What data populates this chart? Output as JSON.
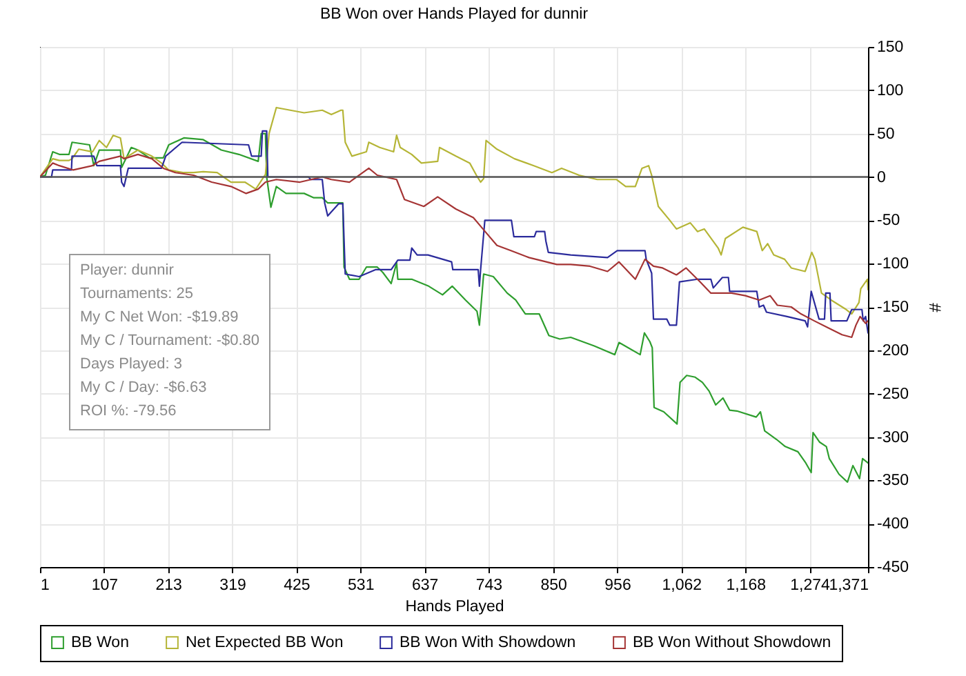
{
  "chart_data": {
    "type": "line",
    "title": "BB Won over Hands Played for dunnir",
    "xlabel": "Hands Played",
    "ylabel": "#",
    "xlim": [
      1,
      1371
    ],
    "ylim": [
      -450,
      150
    ],
    "xticks": [
      1,
      107,
      213,
      319,
      425,
      531,
      637,
      743,
      850,
      956,
      {
        "value": 1062,
        "label": "1,062"
      },
      {
        "value": 1168,
        "label": "1,168"
      },
      {
        "value": 1274,
        "label": "1,274"
      },
      {
        "value": 1371,
        "label": "1,371"
      }
    ],
    "yticks": [
      -450,
      -400,
      -350,
      -300,
      -250,
      -200,
      -150,
      -100,
      -50,
      0,
      50,
      100,
      150
    ],
    "grid": true,
    "legend": "bottom",
    "ref_lines": [
      {
        "axis": "y",
        "value": 0,
        "color": "#555555"
      }
    ],
    "annotations": [
      "Player: dunnir",
      "Tournaments: 25",
      "My C Net Won: -$19.89",
      "My C / Tournament: -$0.80",
      "Days Played: 3",
      "My C / Day: -$6.63",
      "ROI %: -79.56"
    ],
    "series": [
      {
        "name": "BB Won",
        "color": "#2e9e2e",
        "x": [
          1,
          10,
          22,
          33,
          49,
          54,
          83,
          90,
          99,
          134,
          136,
          152,
          163,
          182,
          205,
          214,
          239,
          271,
          301,
          330,
          362,
          367,
          374,
          376,
          383,
          392,
          408,
          438,
          454,
          468,
          477,
          502,
          504,
          513,
          529,
          541,
          559,
          568,
          582,
          591,
          593,
          616,
          644,
          667,
          683,
          705,
          724,
          728,
          735,
          751,
          774,
          788,
          804,
          827,
          843,
          861,
          879,
          918,
          952,
          959,
          994,
          1001,
          1010,
          1014,
          1017,
          1033,
          1055,
          1060,
          1071,
          1085,
          1097,
          1108,
          1119,
          1131,
          1142,
          1154,
          1186,
          1193,
          1200,
          1220,
          1234,
          1255,
          1268,
          1277,
          1280,
          1291,
          1302,
          1307,
          1323,
          1337,
          1346,
          1357,
          1362,
          1371
        ],
        "values": [
          0,
          2,
          29,
          26,
          26,
          40,
          37,
          13,
          31,
          31,
          11,
          34,
          31,
          22,
          22,
          37,
          45,
          43,
          31,
          26,
          18,
          50,
          50,
          0,
          -35,
          -11,
          -19,
          -19,
          -24,
          -24,
          -30,
          -30,
          -104,
          -118,
          -118,
          -104,
          -104,
          -110,
          -123,
          -99,
          -118,
          -118,
          -126,
          -136,
          -126,
          -142,
          -155,
          -171,
          -112,
          -115,
          -134,
          -142,
          -158,
          -158,
          -183,
          -187,
          -185,
          -195,
          -205,
          -191,
          -205,
          -180,
          -190,
          -197,
          -266,
          -271,
          -285,
          -237,
          -229,
          -231,
          -237,
          -247,
          -263,
          -255,
          -269,
          -270,
          -277,
          -271,
          -293,
          -303,
          -311,
          -317,
          -330,
          -341,
          -295,
          -306,
          -311,
          -325,
          -343,
          -352,
          -333,
          -348,
          -325,
          -330
        ]
      },
      {
        "name": "Net Expected BB Won",
        "color": "#b5b536",
        "x": [
          1,
          22,
          33,
          49,
          54,
          65,
          88,
          99,
          111,
          122,
          134,
          140,
          163,
          186,
          202,
          214,
          239,
          255,
          271,
          294,
          317,
          340,
          358,
          374,
          380,
          392,
          415,
          438,
          468,
          483,
          499,
          502,
          506,
          517,
          541,
          545,
          563,
          586,
          591,
          597,
          616,
          632,
          659,
          662,
          689,
          712,
          723,
          730,
          735,
          739,
          757,
          786,
          818,
          848,
          864,
          893,
          923,
          955,
          970,
          986,
          997,
          1008,
          1013,
          1024,
          1043,
          1054,
          1077,
          1089,
          1100,
          1123,
          1128,
          1135,
          1164,
          1187,
          1196,
          1205,
          1215,
          1233,
          1244,
          1267,
          1278,
          1283,
          1294,
          1310,
          1335,
          1344,
          1356,
          1359,
          1370,
          1371
        ],
        "values": [
          0,
          21,
          19,
          19,
          21,
          32,
          29,
          42,
          34,
          48,
          45,
          21,
          31,
          24,
          16,
          8,
          5,
          5,
          6,
          5,
          -6,
          -6,
          -14,
          3,
          50,
          80,
          77,
          74,
          77,
          72,
          77,
          77,
          40,
          24,
          29,
          40,
          34,
          29,
          48,
          34,
          26,
          16,
          18,
          34,
          24,
          16,
          2,
          -6,
          -2,
          42,
          32,
          21,
          13,
          5,
          10,
          2,
          -3,
          -3,
          -11,
          -11,
          10,
          13,
          2,
          -34,
          -50,
          -60,
          -53,
          -63,
          -60,
          -82,
          -90,
          -71,
          -58,
          -63,
          -85,
          -77,
          -90,
          -95,
          -105,
          -109,
          -87,
          -95,
          -134,
          -142,
          -153,
          -158,
          -145,
          -129,
          -118,
          -130
        ]
      },
      {
        "name": "BB Won With Showdown",
        "color": "#2b2b9c",
        "x": [
          1,
          20,
          22,
          53,
          54,
          90,
          95,
          134,
          136,
          140,
          147,
          202,
          209,
          236,
          346,
          351,
          367,
          369,
          376,
          378,
          445,
          449,
          468,
          472,
          477,
          495,
          502,
          506,
          529,
          556,
          582,
          593,
          613,
          616,
          625,
          643,
          682,
          684,
          726,
          728,
          730,
          737,
          781,
          785,
          819,
          822,
          836,
          838,
          842,
          879,
          940,
          956,
          1002,
          1004,
          1013,
          1016,
          1038,
          1043,
          1054,
          1059,
          1089,
          1111,
          1115,
          1130,
          1140,
          1142,
          1187,
          1191,
          1198,
          1203,
          1237,
          1267,
          1271,
          1277,
          1290,
          1299,
          1301,
          1308,
          1310,
          1336,
          1344,
          1361,
          1363,
          1367,
          1371
        ],
        "values": [
          0,
          0,
          8,
          8,
          24,
          24,
          13,
          13,
          -6,
          -11,
          10,
          10,
          24,
          40,
          37,
          24,
          24,
          53,
          53,
          0,
          0,
          -3,
          -3,
          -30,
          -45,
          -31,
          -31,
          -112,
          -115,
          -107,
          -107,
          -96,
          -96,
          -82,
          -90,
          -90,
          -98,
          -107,
          -107,
          -126,
          -107,
          -50,
          -50,
          -69,
          -69,
          -63,
          -63,
          -74,
          -87,
          -90,
          -93,
          -85,
          -85,
          -95,
          -111,
          -164,
          -164,
          -171,
          -171,
          -121,
          -118,
          -118,
          -128,
          -116,
          -116,
          -132,
          -132,
          -150,
          -148,
          -156,
          -161,
          -166,
          -173,
          -132,
          -164,
          -164,
          -134,
          -134,
          -166,
          -166,
          -153,
          -153,
          -166,
          -161,
          -180
        ]
      },
      {
        "name": "BB Won Without Showdown",
        "color": "#a53434",
        "x": [
          1,
          22,
          33,
          56,
          88,
          99,
          134,
          140,
          163,
          186,
          205,
          225,
          255,
          285,
          317,
          342,
          362,
          374,
          392,
          431,
          468,
          483,
          513,
          545,
          559,
          591,
          604,
          636,
          659,
          689,
          718,
          735,
          757,
          780,
          810,
          856,
          879,
          911,
          940,
          959,
          986,
          1002,
          1016,
          1031,
          1054,
          1070,
          1093,
          1111,
          1145,
          1168,
          1191,
          1209,
          1221,
          1244,
          1260,
          1282,
          1305,
          1328,
          1344,
          1351,
          1358,
          1367,
          1371
        ],
        "values": [
          0,
          16,
          13,
          8,
          13,
          18,
          24,
          21,
          26,
          21,
          10,
          5,
          2,
          -6,
          -11,
          -19,
          -14,
          -6,
          -3,
          -6,
          0,
          -3,
          -6,
          10,
          2,
          -3,
          -26,
          -34,
          -23,
          -37,
          -47,
          -61,
          -79,
          -85,
          -93,
          -101,
          -101,
          -103,
          -109,
          -98,
          -118,
          -95,
          -103,
          -105,
          -113,
          -105,
          -121,
          -134,
          -134,
          -137,
          -142,
          -137,
          -148,
          -150,
          -158,
          -166,
          -174,
          -182,
          -185,
          -171,
          -161,
          -169,
          -166
        ]
      }
    ]
  }
}
